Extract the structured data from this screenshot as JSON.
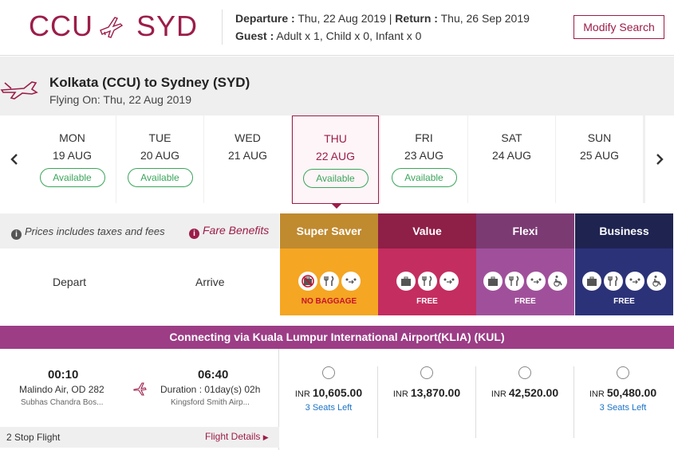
{
  "header": {
    "origin_code": "CCU",
    "destination_code": "SYD",
    "departure_label": "Departure :",
    "departure_value": "Thu, 22 Aug 2019",
    "separator": "|",
    "return_label": "Return :",
    "return_value": "Thu, 26 Sep 2019",
    "guest_label": "Guest :",
    "guest_value": "Adult x 1, Child x 0, Infant x 0",
    "modify_button": "Modify Search"
  },
  "route": {
    "title": "Kolkata (CCU) to Sydney (SYD)",
    "flying_on": "Flying On: Thu, 22 Aug 2019"
  },
  "dates": [
    {
      "day": "MON",
      "date": "19 AUG",
      "status": "Available"
    },
    {
      "day": "TUE",
      "date": "20 AUG",
      "status": "Available"
    },
    {
      "day": "WED",
      "date": "21 AUG",
      "status": ""
    },
    {
      "day": "THU",
      "date": "22 AUG",
      "status": "Available",
      "selected": true
    },
    {
      "day": "FRI",
      "date": "23 AUG",
      "status": "Available"
    },
    {
      "day": "SAT",
      "date": "24 AUG",
      "status": ""
    },
    {
      "day": "SUN",
      "date": "25 AUG",
      "status": ""
    }
  ],
  "fare_info": {
    "prices_note": "Prices includes taxes and fees",
    "fare_benefits": "Fare Benefits",
    "depart_label": "Depart",
    "arrive_label": "Arrive"
  },
  "fares": [
    {
      "name": "Super Saver",
      "baggage": "NO BAGGAGE",
      "color_top": "#c08a2f",
      "color_bottom": "#f5a623",
      "icons": [
        "no-baggage-icon",
        "meal-icon",
        "seat-select-icon"
      ]
    },
    {
      "name": "Value",
      "baggage": "FREE",
      "color_top": "#8e1f47",
      "color_bottom": "#c42d5f",
      "icons": [
        "baggage-icon",
        "meal-icon",
        "seat-select-icon"
      ]
    },
    {
      "name": "Flexi",
      "baggage": "FREE",
      "color_top": "#7c3a73",
      "color_bottom": "#a0509a",
      "icons": [
        "baggage-icon",
        "meal-icon",
        "seat-select-icon",
        "wheelchair-icon"
      ]
    },
    {
      "name": "Business",
      "baggage": "FREE",
      "color_top": "#1f2350",
      "color_bottom": "#2c3278",
      "icons": [
        "baggage-icon",
        "meal-icon",
        "seat-select-icon",
        "wheelchair-icon"
      ]
    }
  ],
  "connecting": "Connecting via Kuala Lumpur International Airport(KLIA) (KUL)",
  "flight": {
    "depart_time": "00:10",
    "airline": "Malindo Air, OD 282",
    "depart_airport": "Subhas Chandra Bos...",
    "arrive_time": "06:40",
    "duration": "Duration : 01day(s) 02h",
    "arrive_airport": "Kingsford Smith Airp...",
    "stops": "2 Stop Flight",
    "details_link": "Flight Details",
    "prices": [
      {
        "currency": "INR",
        "amount": "10,605.00",
        "seats": "3 Seats Left"
      },
      {
        "currency": "INR",
        "amount": "13,870.00",
        "seats": ""
      },
      {
        "currency": "INR",
        "amount": "42,520.00",
        "seats": ""
      },
      {
        "currency": "INR",
        "amount": "50,480.00",
        "seats": "3 Seats Left"
      }
    ]
  }
}
